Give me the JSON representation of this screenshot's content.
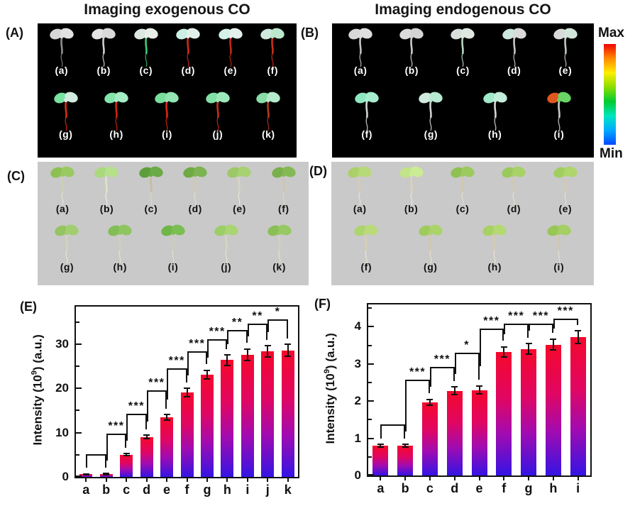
{
  "titles": {
    "exogenous": "Imaging exogenous CO",
    "endogenous": "Imaging endogenous CO"
  },
  "colorbar": {
    "max": "Max",
    "min": "Min",
    "gradient": [
      "#ef0400",
      "#ff8a00",
      "#ffee00",
      "#8ade00",
      "#00cc30",
      "#00e6c0",
      "#00aaff",
      "#0048ff"
    ]
  },
  "panels": {
    "A": {
      "letter": "(A)",
      "background": "#000000",
      "rows": [
        [
          {
            "label": "(a)",
            "leaf": "#d6d6d6",
            "leaf2": "#e2e2e2",
            "stem": "#8f8f8f",
            "root": "#707070"
          },
          {
            "label": "(b)",
            "leaf": "#e4e4e4",
            "leaf2": "#d8d8d8",
            "stem": "#cfcfcf",
            "root": "#bdbdbd"
          },
          {
            "label": "(c)",
            "leaf": "#dde8e0",
            "leaf2": "#e8efe9",
            "stem": "#3ecb77",
            "root": "#2da55c"
          },
          {
            "label": "(d)",
            "leaf": "#cbeee4",
            "leaf2": "#e3f0ea",
            "stem": "#cf2b14",
            "root": "#b22310"
          },
          {
            "label": "(e)",
            "leaf": "#d4f0e8",
            "leaf2": "#e5f0ec",
            "stem": "#c22715",
            "root": "#a81f0e"
          },
          {
            "label": "(f)",
            "leaf": "#cfe9dd",
            "leaf2": "#bce7cf",
            "stem": "#c92f1a",
            "root": "#ae2513"
          }
        ],
        [
          {
            "label": "(g)",
            "leaf": "#78e2a0",
            "leaf2": "#d2ebdf",
            "stem": "#da2a11",
            "root": "#c3200c"
          },
          {
            "label": "(h)",
            "leaf": "#84e5ac",
            "leaf2": "#a6ecc4",
            "stem": "#d4220e",
            "root": "#bd1e0b"
          },
          {
            "label": "(i)",
            "leaf": "#77de9b",
            "leaf2": "#92e5b2",
            "stem": "#d92612",
            "root": "#c21e0b"
          },
          {
            "label": "(j)",
            "leaf": "#81e1a6",
            "leaf2": "#9de8bb",
            "stem": "#c72c17",
            "root": "#af2411"
          },
          {
            "label": "(k)",
            "leaf": "#88dea6",
            "leaf2": "#b5ebcc",
            "stem": "#b13a21",
            "root": "#983017"
          }
        ]
      ]
    },
    "B": {
      "letter": "(B)",
      "background": "#000000",
      "rows": [
        [
          {
            "label": "(a)",
            "leaf": "#d8d8d8",
            "leaf2": "#dedede",
            "stem": "#c2c2c2",
            "root": "#aeaeae"
          },
          {
            "label": "(b)",
            "leaf": "#dcdcdc",
            "leaf2": "#d3d3d3",
            "stem": "#cbcbcb",
            "root": "#b9b9b9"
          },
          {
            "label": "(c)",
            "leaf": "#d8e1db",
            "leaf2": "#e0e8e2",
            "stem": "#b9d6c4",
            "root": "#9cbcab"
          },
          {
            "label": "(d)",
            "leaf": "#cde7df",
            "leaf2": "#dadada",
            "stem": "#c5c5c5",
            "root": "#b1b1b1"
          },
          {
            "label": "(e)",
            "leaf": "#d9d9d9",
            "leaf2": "#d1e5db",
            "stem": "#becabf",
            "root": "#a6b3a8"
          }
        ],
        [
          {
            "label": "(f)",
            "leaf": "#8de7c0",
            "leaf2": "#a7edcf",
            "stem": "#ced7cf",
            "root": "#b7c1b9"
          },
          {
            "label": "(g)",
            "leaf": "#d2ebdf",
            "leaf2": "#b7e9d2",
            "stem": "#d1d1d1",
            "root": "#bebebe"
          },
          {
            "label": "(h)",
            "leaf": "#a2e8cb",
            "leaf2": "#c2eedb",
            "stem": "#d5d5d5",
            "root": "#c1c1c1"
          },
          {
            "label": "(i)",
            "leaf": "#e2571f",
            "leaf2": "#6ad365",
            "stem": "#cbcbcb",
            "root": "#b7b7b7"
          }
        ]
      ]
    },
    "C": {
      "letter": "(C)",
      "background": "#c9c9c9",
      "rows": [
        [
          {
            "label": "(a)",
            "leaf": "#8cc152",
            "leaf2": "#99ca62",
            "stem": "#ccd1b6",
            "root": "#e2e2d6"
          },
          {
            "label": "(b)",
            "leaf": "#a9d97c",
            "leaf2": "#b7e08b",
            "stem": "#dde2cb",
            "root": "#ececdf"
          },
          {
            "label": "(c)",
            "leaf": "#5e9e3a",
            "leaf2": "#6baa45",
            "stem": "#c8bd9d",
            "root": "#dcd8c4"
          },
          {
            "label": "(d)",
            "leaf": "#6faa44",
            "leaf2": "#7bb450",
            "stem": "#d0c9ae",
            "root": "#e0dcc8"
          },
          {
            "label": "(e)",
            "leaf": "#9cc868",
            "leaf2": "#a8d172",
            "stem": "#d6d6be",
            "root": "#e4e4d2"
          },
          {
            "label": "(f)",
            "leaf": "#7ab04b",
            "leaf2": "#85b956",
            "stem": "#cdc7ac",
            "root": "#dcd6c0"
          }
        ],
        [
          {
            "label": "(g)",
            "leaf": "#95c463",
            "leaf2": "#a2ce6f",
            "stem": "#d3d3be",
            "root": "#e2e2d2"
          },
          {
            "label": "(h)",
            "leaf": "#83bd55",
            "leaf2": "#8fc560",
            "stem": "#d0d0ba",
            "root": "#e0e0ce"
          },
          {
            "label": "(i)",
            "leaf": "#6fb547",
            "leaf2": "#7bbe52",
            "stem": "#ccccb6",
            "root": "#dedec8"
          },
          {
            "label": "(j)",
            "leaf": "#9ccd68",
            "leaf2": "#a9d573",
            "stem": "#d5d5c0",
            "root": "#e3e3d0"
          },
          {
            "label": "(k)",
            "leaf": "#8abf58",
            "leaf2": "#96c863",
            "stem": "#d1d1bc",
            "root": "#dfdfca"
          }
        ]
      ]
    },
    "D": {
      "letter": "(D)",
      "background": "#c9c9c9",
      "rows": [
        [
          {
            "label": "(a)",
            "leaf": "#abd06a",
            "leaf2": "#b7d977",
            "stem": "#d6cbb0",
            "root": "#e6e0d0"
          },
          {
            "label": "(b)",
            "leaf": "#c2e388",
            "leaf2": "#cceb95",
            "stem": "#dcd2b8",
            "root": "#eae4d4"
          },
          {
            "label": "(c)",
            "leaf": "#8fc152",
            "leaf2": "#9cca5f",
            "stem": "#d2c7ac",
            "root": "#e2dccc"
          },
          {
            "label": "(d)",
            "leaf": "#9bca5c",
            "leaf2": "#a7d268",
            "stem": "#d4c9ae",
            "root": "#e4dece"
          },
          {
            "label": "(e)",
            "leaf": "#a2ce60",
            "leaf2": "#aed66c",
            "stem": "#d5cab0",
            "root": "#e5dfcf"
          }
        ],
        [
          {
            "label": "(f)",
            "leaf": "#aed46e",
            "leaf2": "#badb7a",
            "stem": "#d8cdb2",
            "root": "#e8e2d2"
          },
          {
            "label": "(g)",
            "leaf": "#9fcb5e",
            "leaf2": "#abd36a",
            "stem": "#d3c8ad",
            "root": "#e3ddcd"
          },
          {
            "label": "(h)",
            "leaf": "#a7d165",
            "leaf2": "#b3d971",
            "stem": "#d6cbb0",
            "root": "#e6e0d0"
          },
          {
            "label": "(i)",
            "leaf": "#98c757",
            "leaf2": "#a4cf63",
            "stem": "#d2c7ac",
            "root": "#e2dccc"
          }
        ]
      ]
    },
    "E": {
      "letter": "(E)"
    },
    "F": {
      "letter": "(F)"
    }
  },
  "chart_data": [
    {
      "id": "E",
      "type": "bar",
      "categories": [
        "a",
        "b",
        "c",
        "d",
        "e",
        "f",
        "g",
        "h",
        "i",
        "j",
        "k"
      ],
      "values": [
        0.6,
        0.65,
        5.0,
        9.0,
        13.4,
        19.1,
        23.1,
        26.4,
        27.6,
        28.4,
        28.6
      ],
      "errors": [
        0.25,
        0.25,
        0.4,
        0.55,
        0.8,
        1.1,
        1.2,
        1.3,
        1.5,
        1.4,
        1.5
      ],
      "ylabel": {
        "pre": "Intensity (10",
        "sup": "9",
        "suf": ") (a.u.)"
      },
      "yticks": [
        0,
        10,
        20,
        30
      ],
      "minor_tick": 5,
      "ylim": [
        0,
        38.5
      ],
      "grid": false,
      "legend": null,
      "bar_gradient": [
        "#f5082b",
        "#e00663",
        "#a30bb0",
        "#3414e4"
      ],
      "significance_brackets": [
        {
          "from": "a",
          "to": "b",
          "label": "",
          "height": 5.2
        },
        {
          "from": "b",
          "to": "c",
          "label": "***",
          "height": 9.8
        },
        {
          "from": "c",
          "to": "d",
          "label": "***",
          "height": 14.2
        },
        {
          "from": "d",
          "to": "e",
          "label": "***",
          "height": 19.6
        },
        {
          "from": "e",
          "to": "f",
          "label": "***",
          "height": 24.6
        },
        {
          "from": "f",
          "to": "g",
          "label": "***",
          "height": 28.4
        },
        {
          "from": "g",
          "to": "h",
          "label": "***",
          "height": 31.2
        },
        {
          "from": "h",
          "to": "i",
          "label": "**",
          "height": 33.2
        },
        {
          "from": "i",
          "to": "j",
          "label": "**",
          "height": 34.6
        },
        {
          "from": "j",
          "to": "k",
          "label": "*",
          "height": 35.6
        }
      ]
    },
    {
      "id": "F",
      "type": "bar",
      "categories": [
        "a",
        "b",
        "c",
        "d",
        "e",
        "f",
        "g",
        "h",
        "i"
      ],
      "values": [
        0.8,
        0.8,
        1.97,
        2.28,
        2.3,
        3.32,
        3.4,
        3.52,
        3.72
      ],
      "errors": [
        0.06,
        0.06,
        0.1,
        0.12,
        0.13,
        0.16,
        0.16,
        0.17,
        0.19
      ],
      "ylabel": {
        "pre": "Intensity (10",
        "sup": "9",
        "suf": ") (a.u.)"
      },
      "yticks": [
        0,
        1,
        2,
        3,
        4
      ],
      "minor_tick": 0.5,
      "ylim": [
        0,
        4.6
      ],
      "grid": false,
      "legend": null,
      "bar_gradient": [
        "#f5082b",
        "#e00663",
        "#a30bb0",
        "#3414e4"
      ],
      "significance_brackets": [
        {
          "from": "a",
          "to": "b",
          "label": "",
          "height": 1.38
        },
        {
          "from": "b",
          "to": "c",
          "label": "***",
          "height": 2.58
        },
        {
          "from": "c",
          "to": "d",
          "label": "***",
          "height": 2.92
        },
        {
          "from": "d",
          "to": "e",
          "label": "*",
          "height": 3.3
        },
        {
          "from": "e",
          "to": "f",
          "label": "***",
          "height": 3.96
        },
        {
          "from": "f",
          "to": "g",
          "label": "***",
          "height": 4.08
        },
        {
          "from": "g",
          "to": "h",
          "label": "***",
          "height": 4.08
        },
        {
          "from": "h",
          "to": "i",
          "label": "***",
          "height": 4.22
        }
      ]
    }
  ]
}
